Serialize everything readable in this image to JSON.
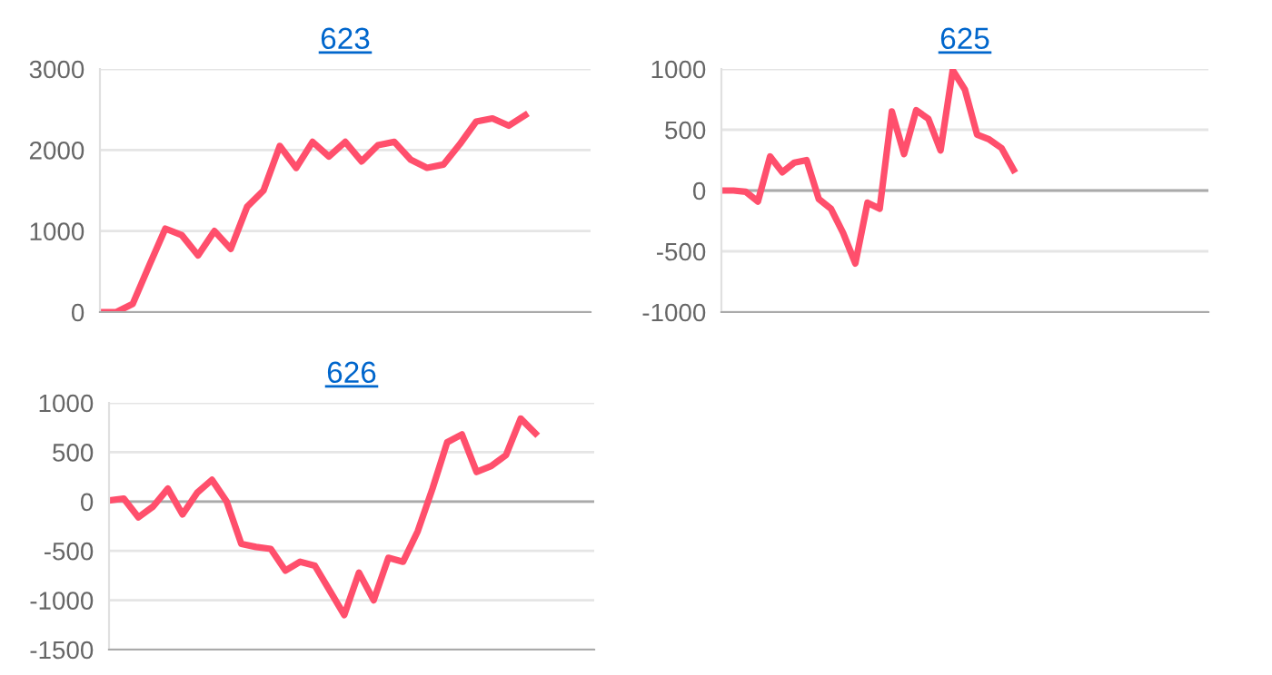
{
  "chart_data": [
    {
      "type": "line",
      "title": "623",
      "categories": [
        null,
        null,
        null,
        null,
        null,
        null,
        null,
        null,
        null,
        null,
        null,
        null,
        null,
        null,
        null,
        null,
        null,
        null,
        null,
        null,
        null,
        null,
        null,
        null,
        null,
        null,
        null,
        null,
        null,
        null,
        null
      ],
      "series": [
        {
          "color": "#ff4f6c",
          "values": [
            0,
            0,
            100,
            570,
            1030,
            950,
            700,
            1000,
            780,
            1300,
            1500,
            2050,
            1780,
            2100,
            1920,
            2100,
            1860,
            2060,
            2100,
            1880,
            1780,
            1820,
            2070,
            2350,
            2390,
            2300,
            2430,
            null,
            null,
            null,
            null
          ]
        }
      ],
      "ylim": [
        0,
        3000
      ],
      "yticks": [
        0,
        1000,
        2000,
        3000
      ],
      "grid": "y",
      "marker": "none",
      "line_style": "solid"
    },
    {
      "type": "line",
      "title": "625",
      "categories": [
        null,
        null,
        null,
        null,
        null,
        null,
        null,
        null,
        null,
        null,
        null,
        null,
        null,
        null,
        null,
        null,
        null,
        null,
        null,
        null,
        null,
        null,
        null,
        null,
        null,
        null,
        null,
        null,
        null,
        null,
        null,
        null,
        null,
        null,
        null,
        null,
        null,
        null,
        null,
        null,
        null
      ],
      "series": [
        {
          "color": "#ff4f6c",
          "values": [
            0,
            0,
            -10,
            -90,
            280,
            150,
            230,
            250,
            -70,
            -150,
            -350,
            -600,
            -100,
            -150,
            650,
            300,
            660,
            590,
            330,
            990,
            830,
            460,
            420,
            350,
            170,
            null,
            null,
            null,
            null,
            null,
            null,
            null,
            null,
            null,
            null,
            null,
            null,
            null,
            null,
            null,
            null
          ]
        }
      ],
      "ylim": [
        -1000,
        1000
      ],
      "yticks": [
        -1000,
        -500,
        0,
        500,
        1000
      ],
      "grid": "y",
      "marker": "none",
      "line_style": "solid"
    },
    {
      "type": "line",
      "title": "626",
      "categories": [
        null,
        null,
        null,
        null,
        null,
        null,
        null,
        null,
        null,
        null,
        null,
        null,
        null,
        null,
        null,
        null,
        null,
        null,
        null,
        null,
        null,
        null,
        null,
        null,
        null,
        null,
        null,
        null,
        null,
        null,
        null,
        null,
        null,
        null
      ],
      "series": [
        {
          "color": "#ff4f6c",
          "values": [
            10,
            30,
            -160,
            -50,
            130,
            -130,
            90,
            220,
            0,
            -430,
            -460,
            -480,
            -700,
            -610,
            -650,
            -900,
            -1150,
            -720,
            -1000,
            -570,
            -610,
            -300,
            130,
            600,
            680,
            300,
            360,
            470,
            840,
            690,
            null,
            null,
            null,
            null
          ]
        }
      ],
      "ylim": [
        -1500,
        1000
      ],
      "yticks": [
        -1500,
        -1000,
        -500,
        0,
        500,
        1000
      ],
      "grid": "y",
      "marker": "none",
      "line_style": "solid"
    }
  ]
}
